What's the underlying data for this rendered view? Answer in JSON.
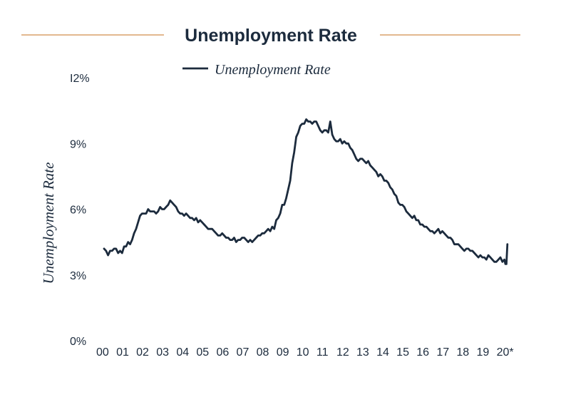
{
  "colors": {
    "series": "#1c2b3d",
    "title_rule": "#d9a06a",
    "text": "#1c2b3d"
  },
  "chart_data": {
    "type": "line",
    "title": "Unemployment Rate",
    "xlabel": "",
    "ylabel": "Unemployment Rate",
    "legend": "top",
    "grid": false,
    "ylim": [
      0,
      12
    ],
    "xlim": [
      0,
      20.3
    ],
    "yticks": [
      {
        "value": 0,
        "label": "0%"
      },
      {
        "value": 3,
        "label": "3%"
      },
      {
        "value": 6,
        "label": "6%"
      },
      {
        "value": 9,
        "label": "9%"
      },
      {
        "value": 12,
        "label": "I2%"
      }
    ],
    "xticks": [
      {
        "value": 0,
        "label": "00"
      },
      {
        "value": 1,
        "label": "01"
      },
      {
        "value": 2,
        "label": "02"
      },
      {
        "value": 3,
        "label": "03"
      },
      {
        "value": 4,
        "label": "04"
      },
      {
        "value": 5,
        "label": "05"
      },
      {
        "value": 6,
        "label": "06"
      },
      {
        "value": 7,
        "label": "07"
      },
      {
        "value": 8,
        "label": "08"
      },
      {
        "value": 9,
        "label": "09"
      },
      {
        "value": 10,
        "label": "10"
      },
      {
        "value": 11,
        "label": "11"
      },
      {
        "value": 12,
        "label": "12"
      },
      {
        "value": 13,
        "label": "13"
      },
      {
        "value": 14,
        "label": "14"
      },
      {
        "value": 15,
        "label": "15"
      },
      {
        "value": 16,
        "label": "16"
      },
      {
        "value": 17,
        "label": "17"
      },
      {
        "value": 18,
        "label": "18"
      },
      {
        "value": 19,
        "label": "19"
      },
      {
        "value": 20,
        "label": "20*"
      }
    ],
    "series": [
      {
        "name": "Unemployment Rate",
        "x": [
          0.0,
          0.1,
          0.2,
          0.3,
          0.4,
          0.5,
          0.6,
          0.7,
          0.8,
          0.9,
          1.0,
          1.1,
          1.2,
          1.3,
          1.4,
          1.5,
          1.6,
          1.7,
          1.8,
          1.9,
          2.0,
          2.1,
          2.2,
          2.3,
          2.4,
          2.5,
          2.6,
          2.7,
          2.8,
          2.9,
          3.0,
          3.1,
          3.2,
          3.3,
          3.4,
          3.5,
          3.6,
          3.7,
          3.8,
          3.9,
          4.0,
          4.1,
          4.2,
          4.3,
          4.4,
          4.5,
          4.6,
          4.7,
          4.8,
          4.9,
          5.0,
          5.1,
          5.2,
          5.3,
          5.4,
          5.5,
          5.6,
          5.7,
          5.8,
          5.9,
          6.0,
          6.1,
          6.2,
          6.3,
          6.4,
          6.5,
          6.6,
          6.7,
          6.8,
          6.9,
          7.0,
          7.1,
          7.2,
          7.3,
          7.4,
          7.5,
          7.6,
          7.7,
          7.8,
          7.9,
          8.0,
          8.1,
          8.2,
          8.3,
          8.4,
          8.5,
          8.6,
          8.7,
          8.8,
          8.9,
          9.0,
          9.1,
          9.2,
          9.3,
          9.4,
          9.5,
          9.6,
          9.7,
          9.8,
          9.9,
          10.0,
          10.1,
          10.2,
          10.3,
          10.4,
          10.5,
          10.6,
          10.7,
          10.8,
          10.9,
          11.0,
          11.1,
          11.2,
          11.3,
          11.4,
          11.5,
          11.6,
          11.7,
          11.8,
          11.9,
          12.0,
          12.1,
          12.2,
          12.3,
          12.4,
          12.5,
          12.6,
          12.7,
          12.8,
          12.9,
          13.0,
          13.1,
          13.2,
          13.3,
          13.4,
          13.5,
          13.6,
          13.7,
          13.8,
          13.9,
          14.0,
          14.1,
          14.2,
          14.3,
          14.4,
          14.5,
          14.6,
          14.7,
          14.8,
          14.9,
          15.0,
          15.1,
          15.2,
          15.3,
          15.4,
          15.5,
          15.6,
          15.7,
          15.8,
          15.9,
          16.0,
          16.1,
          16.2,
          16.3,
          16.4,
          16.5,
          16.6,
          16.7,
          16.8,
          16.9,
          17.0,
          17.1,
          17.2,
          17.3,
          17.4,
          17.5,
          17.6,
          17.7,
          17.8,
          17.9,
          18.0,
          18.1,
          18.2,
          18.3,
          18.4,
          18.5,
          18.6,
          18.7,
          18.8,
          18.9,
          19.0,
          19.1,
          19.2,
          19.3,
          19.4,
          19.5,
          19.6,
          19.7,
          19.8,
          19.9,
          20.0,
          20.05,
          20.1,
          20.15
        ],
        "values": [
          4.2,
          4.1,
          3.9,
          4.1,
          4.1,
          4.2,
          4.2,
          4.0,
          4.1,
          4.0,
          4.3,
          4.3,
          4.5,
          4.4,
          4.6,
          4.9,
          5.1,
          5.4,
          5.7,
          5.8,
          5.8,
          5.8,
          6.0,
          5.9,
          5.9,
          5.9,
          5.8,
          5.9,
          6.1,
          6.0,
          6.0,
          6.1,
          6.2,
          6.4,
          6.3,
          6.2,
          6.1,
          5.9,
          5.8,
          5.8,
          5.7,
          5.8,
          5.7,
          5.6,
          5.6,
          5.5,
          5.6,
          5.4,
          5.5,
          5.4,
          5.3,
          5.2,
          5.1,
          5.1,
          5.1,
          5.0,
          4.9,
          4.8,
          4.8,
          4.9,
          4.8,
          4.7,
          4.7,
          4.6,
          4.6,
          4.7,
          4.5,
          4.6,
          4.6,
          4.7,
          4.7,
          4.6,
          4.5,
          4.6,
          4.5,
          4.6,
          4.7,
          4.8,
          4.8,
          4.9,
          4.9,
          5.0,
          5.1,
          5.0,
          5.2,
          5.1,
          5.5,
          5.6,
          5.8,
          6.2,
          6.2,
          6.5,
          6.9,
          7.3,
          8.1,
          8.6,
          9.3,
          9.5,
          9.8,
          9.9,
          9.9,
          10.1,
          10.0,
          10.0,
          9.9,
          10.0,
          10.0,
          9.8,
          9.6,
          9.5,
          9.6,
          9.6,
          9.5,
          10.0,
          9.4,
          9.2,
          9.1,
          9.1,
          9.2,
          9.0,
          9.1,
          9.0,
          9.0,
          8.8,
          8.7,
          8.5,
          8.3,
          8.2,
          8.3,
          8.3,
          8.2,
          8.1,
          8.2,
          8.0,
          7.9,
          7.8,
          7.7,
          7.5,
          7.6,
          7.5,
          7.3,
          7.3,
          7.2,
          7.0,
          6.9,
          6.7,
          6.6,
          6.3,
          6.2,
          6.2,
          6.1,
          5.9,
          5.8,
          5.7,
          5.6,
          5.7,
          5.5,
          5.5,
          5.3,
          5.3,
          5.2,
          5.2,
          5.1,
          5.0,
          5.0,
          4.9,
          5.0,
          5.1,
          4.9,
          5.0,
          4.9,
          4.8,
          4.7,
          4.7,
          4.6,
          4.4,
          4.4,
          4.4,
          4.3,
          4.2,
          4.1,
          4.2,
          4.2,
          4.1,
          4.1,
          4.0,
          3.9,
          3.8,
          3.9,
          3.8,
          3.8,
          3.7,
          3.9,
          3.8,
          3.7,
          3.6,
          3.6,
          3.7,
          3.8,
          3.6,
          3.7,
          3.5,
          3.5,
          4.4
        ]
      }
    ]
  }
}
